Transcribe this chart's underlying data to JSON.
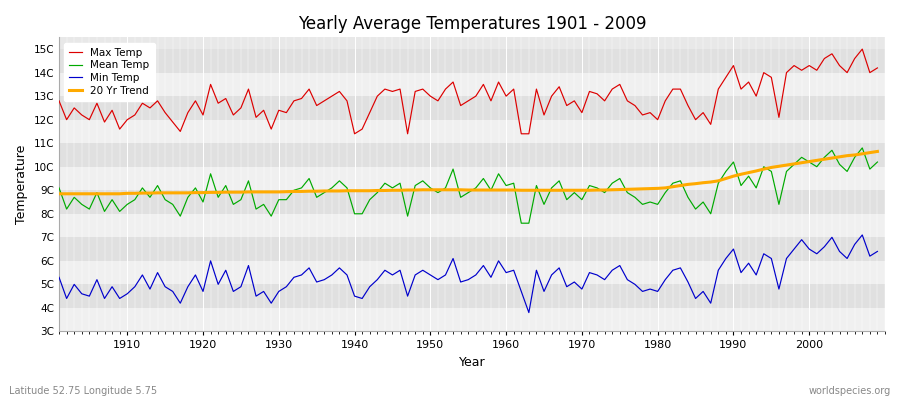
{
  "title": "Yearly Average Temperatures 1901 - 2009",
  "xlabel": "Year",
  "ylabel": "Temperature",
  "subtitle_left": "Latitude 52.75 Longitude 5.75",
  "subtitle_right": "worldspecies.org",
  "ylim": [
    3,
    15.5
  ],
  "yticks": [
    3,
    4,
    5,
    6,
    7,
    8,
    9,
    10,
    11,
    12,
    13,
    14,
    15
  ],
  "ytick_labels": [
    "3C",
    "4C",
    "5C",
    "6C",
    "7C",
    "8C",
    "9C",
    "10C",
    "11C",
    "12C",
    "13C",
    "14C",
    "15C"
  ],
  "xlim": [
    1901,
    2010
  ],
  "colors": {
    "max_temp": "#dd0000",
    "mean_temp": "#00aa00",
    "min_temp": "#0000cc",
    "trend": "#ffaa00",
    "fig_bg": "#ffffff",
    "plot_bg": "#e8e8e8",
    "band_light": "#f0f0f0",
    "band_dark": "#e0e0e0",
    "grid": "#ffffff"
  },
  "legend": {
    "max_temp": "Max Temp",
    "mean_temp": "Mean Temp",
    "min_temp": "Min Temp",
    "trend": "20 Yr Trend"
  },
  "years": [
    1901,
    1902,
    1903,
    1904,
    1905,
    1906,
    1907,
    1908,
    1909,
    1910,
    1911,
    1912,
    1913,
    1914,
    1915,
    1916,
    1917,
    1918,
    1919,
    1920,
    1921,
    1922,
    1923,
    1924,
    1925,
    1926,
    1927,
    1928,
    1929,
    1930,
    1931,
    1932,
    1933,
    1934,
    1935,
    1936,
    1937,
    1938,
    1939,
    1940,
    1941,
    1942,
    1943,
    1944,
    1945,
    1946,
    1947,
    1948,
    1949,
    1950,
    1951,
    1952,
    1953,
    1954,
    1955,
    1956,
    1957,
    1958,
    1959,
    1960,
    1961,
    1962,
    1963,
    1964,
    1965,
    1966,
    1967,
    1968,
    1969,
    1970,
    1971,
    1972,
    1973,
    1974,
    1975,
    1976,
    1977,
    1978,
    1979,
    1980,
    1981,
    1982,
    1983,
    1984,
    1985,
    1986,
    1987,
    1988,
    1989,
    1990,
    1991,
    1992,
    1993,
    1994,
    1995,
    1996,
    1997,
    1998,
    1999,
    2000,
    2001,
    2002,
    2003,
    2004,
    2005,
    2006,
    2007,
    2008,
    2009
  ],
  "max_temp": [
    12.8,
    12.0,
    12.5,
    12.2,
    12.0,
    12.7,
    11.9,
    12.4,
    11.6,
    12.0,
    12.2,
    12.7,
    12.5,
    12.8,
    12.3,
    11.9,
    11.5,
    12.3,
    12.8,
    12.2,
    13.5,
    12.7,
    12.9,
    12.2,
    12.5,
    13.3,
    12.1,
    12.4,
    11.6,
    12.4,
    12.3,
    12.8,
    12.9,
    13.3,
    12.6,
    12.8,
    13.0,
    13.2,
    12.8,
    11.4,
    11.6,
    12.3,
    13.0,
    13.3,
    13.2,
    13.3,
    11.4,
    13.2,
    13.3,
    13.0,
    12.8,
    13.3,
    13.6,
    12.6,
    12.8,
    13.0,
    13.5,
    12.8,
    13.6,
    13.0,
    13.3,
    11.4,
    11.4,
    13.3,
    12.2,
    13.0,
    13.4,
    12.6,
    12.8,
    12.3,
    13.2,
    13.1,
    12.8,
    13.3,
    13.5,
    12.8,
    12.6,
    12.2,
    12.3,
    12.0,
    12.8,
    13.3,
    13.3,
    12.6,
    12.0,
    12.3,
    11.8,
    13.3,
    13.8,
    14.3,
    13.3,
    13.6,
    13.0,
    14.0,
    13.8,
    12.1,
    14.0,
    14.3,
    14.1,
    14.3,
    14.1,
    14.6,
    14.8,
    14.3,
    14.0,
    14.6,
    15.0,
    14.0,
    14.2
  ],
  "mean_temp": [
    9.1,
    8.2,
    8.7,
    8.4,
    8.2,
    8.9,
    8.1,
    8.6,
    8.1,
    8.4,
    8.6,
    9.1,
    8.7,
    9.2,
    8.6,
    8.4,
    7.9,
    8.7,
    9.1,
    8.5,
    9.7,
    8.7,
    9.2,
    8.4,
    8.6,
    9.4,
    8.2,
    8.4,
    7.9,
    8.6,
    8.6,
    9.0,
    9.1,
    9.5,
    8.7,
    8.9,
    9.1,
    9.4,
    9.1,
    8.0,
    8.0,
    8.6,
    8.9,
    9.3,
    9.1,
    9.3,
    7.9,
    9.2,
    9.4,
    9.1,
    8.9,
    9.1,
    9.9,
    8.7,
    8.9,
    9.1,
    9.5,
    9.0,
    9.7,
    9.2,
    9.3,
    7.6,
    7.6,
    9.2,
    8.4,
    9.1,
    9.4,
    8.6,
    8.9,
    8.6,
    9.2,
    9.1,
    8.9,
    9.3,
    9.5,
    8.9,
    8.7,
    8.4,
    8.5,
    8.4,
    8.9,
    9.3,
    9.4,
    8.7,
    8.2,
    8.5,
    8.0,
    9.3,
    9.8,
    10.2,
    9.2,
    9.6,
    9.1,
    10.0,
    9.8,
    8.4,
    9.8,
    10.1,
    10.4,
    10.2,
    10.0,
    10.4,
    10.7,
    10.1,
    9.8,
    10.4,
    10.8,
    9.9,
    10.2
  ],
  "min_temp": [
    5.3,
    4.4,
    5.0,
    4.6,
    4.5,
    5.2,
    4.4,
    4.9,
    4.4,
    4.6,
    4.9,
    5.4,
    4.8,
    5.5,
    4.9,
    4.7,
    4.2,
    4.9,
    5.4,
    4.7,
    6.0,
    5.0,
    5.6,
    4.7,
    4.9,
    5.8,
    4.5,
    4.7,
    4.2,
    4.7,
    4.9,
    5.3,
    5.4,
    5.7,
    5.1,
    5.2,
    5.4,
    5.7,
    5.4,
    4.5,
    4.4,
    4.9,
    5.2,
    5.6,
    5.4,
    5.6,
    4.5,
    5.4,
    5.6,
    5.4,
    5.2,
    5.4,
    6.1,
    5.1,
    5.2,
    5.4,
    5.8,
    5.3,
    6.0,
    5.5,
    5.6,
    4.7,
    3.8,
    5.6,
    4.7,
    5.4,
    5.7,
    4.9,
    5.1,
    4.8,
    5.5,
    5.4,
    5.2,
    5.6,
    5.8,
    5.2,
    5.0,
    4.7,
    4.8,
    4.7,
    5.2,
    5.6,
    5.7,
    5.1,
    4.4,
    4.7,
    4.2,
    5.6,
    6.1,
    6.5,
    5.5,
    5.9,
    5.4,
    6.3,
    6.1,
    4.8,
    6.1,
    6.5,
    6.9,
    6.5,
    6.3,
    6.6,
    7.0,
    6.4,
    6.1,
    6.7,
    7.1,
    6.2,
    6.4
  ],
  "trend": [
    8.85,
    8.85,
    8.85,
    8.85,
    8.85,
    8.85,
    8.85,
    8.85,
    8.85,
    8.87,
    8.87,
    8.88,
    8.88,
    8.89,
    8.89,
    8.89,
    8.89,
    8.89,
    8.9,
    8.9,
    8.91,
    8.91,
    8.92,
    8.92,
    8.92,
    8.93,
    8.93,
    8.93,
    8.93,
    8.93,
    8.94,
    8.95,
    8.95,
    8.96,
    8.96,
    8.97,
    8.97,
    8.97,
    8.98,
    8.98,
    8.98,
    8.98,
    8.99,
    8.99,
    9.0,
    9.0,
    9.01,
    9.01,
    9.02,
    9.02,
    9.02,
    9.02,
    9.02,
    9.02,
    9.01,
    9.01,
    9.01,
    9.01,
    9.01,
    9.01,
    9.01,
    9.0,
    9.0,
    9.0,
    9.0,
    9.0,
    9.0,
    9.0,
    9.0,
    9.0,
    9.0,
    9.01,
    9.01,
    9.02,
    9.03,
    9.04,
    9.05,
    9.06,
    9.07,
    9.08,
    9.1,
    9.15,
    9.2,
    9.25,
    9.28,
    9.32,
    9.35,
    9.4,
    9.5,
    9.6,
    9.68,
    9.75,
    9.82,
    9.9,
    9.97,
    10.02,
    10.07,
    10.12,
    10.17,
    10.22,
    10.27,
    10.32,
    10.37,
    10.42,
    10.47,
    10.5,
    10.55,
    10.6,
    10.65
  ]
}
